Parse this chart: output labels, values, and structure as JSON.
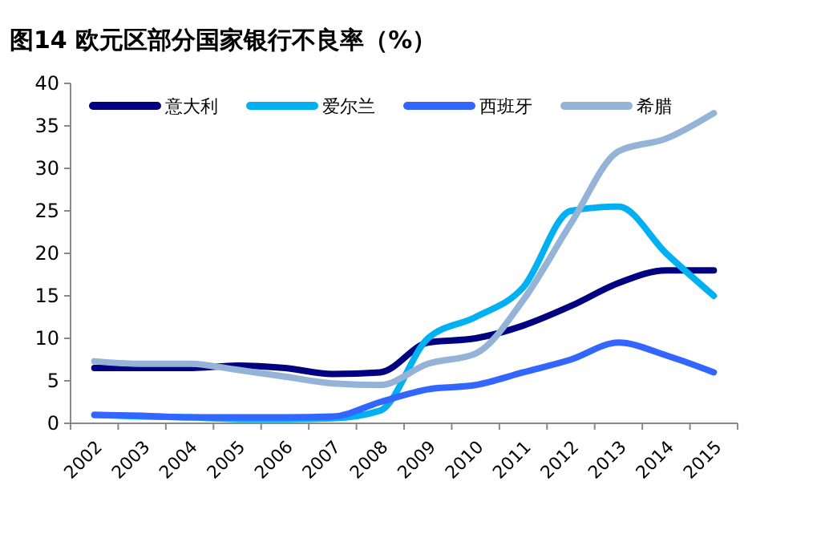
{
  "chart_data": {
    "type": "line",
    "title": "图14 欧元区部分国家银行不良率（%）",
    "categories": [
      "2002",
      "2003",
      "2004",
      "2005",
      "2006",
      "2007",
      "2008",
      "2009",
      "2010",
      "2011",
      "2012",
      "2013",
      "2014",
      "2015"
    ],
    "series": [
      {
        "name": "意大利",
        "color": "#000080",
        "values": [
          6.5,
          6.5,
          6.5,
          6.8,
          6.5,
          5.8,
          6.0,
          9.5,
          10,
          11.5,
          13.8,
          16.5,
          18,
          18
        ]
      },
      {
        "name": "爱尔兰",
        "color": "#00b0f0",
        "values": [
          1,
          0.8,
          0.7,
          0.5,
          0.5,
          0.6,
          1.5,
          10,
          12.5,
          16,
          25,
          25.5,
          20,
          15
        ]
      },
      {
        "name": "西班牙",
        "color": "#3366ff",
        "values": [
          1,
          0.9,
          0.7,
          0.7,
          0.7,
          0.8,
          2.5,
          4,
          4.5,
          6,
          7.5,
          9.5,
          8,
          6
        ]
      },
      {
        "name": "希腊",
        "color": "#95b3d7",
        "values": [
          7.3,
          7,
          7,
          6.3,
          5.5,
          4.7,
          4.5,
          7,
          8.2,
          14.5,
          23.5,
          32,
          33.5,
          36.5
        ]
      }
    ],
    "ylim": [
      0,
      40
    ],
    "yticks": [
      0,
      5,
      10,
      15,
      20,
      25,
      30,
      35,
      40
    ],
    "legend": "top",
    "grid": false,
    "marker": "none",
    "line_style": "solid"
  }
}
